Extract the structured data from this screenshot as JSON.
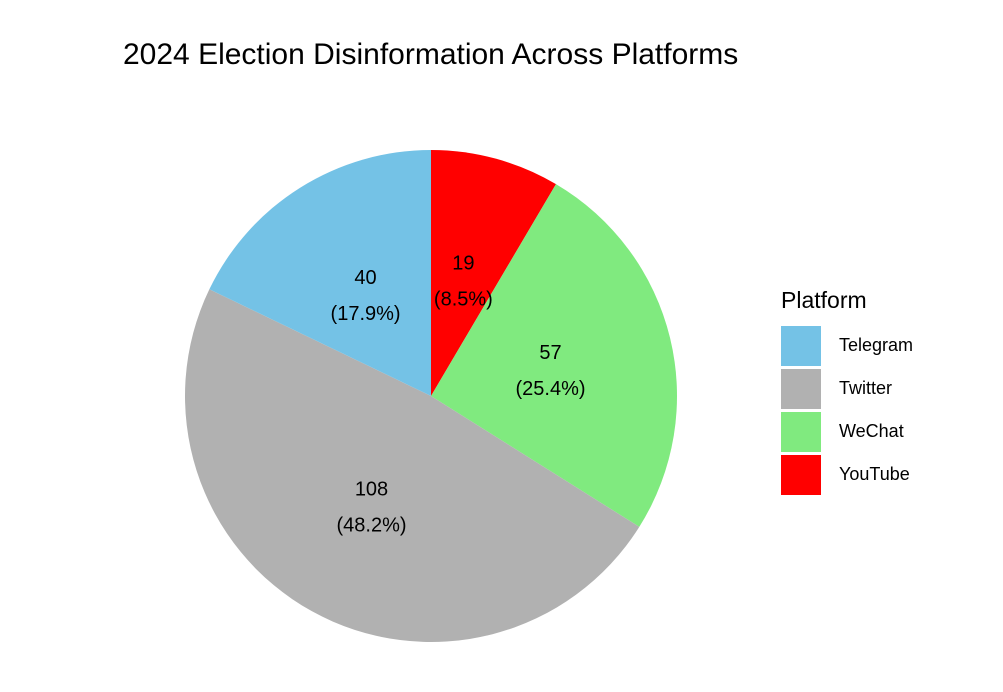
{
  "chart_data": {
    "type": "pie",
    "title": "2024 Election Disinformation Across Platforms",
    "legend_title": "Platform",
    "legend_position": "right",
    "slices": [
      {
        "category": "Telegram",
        "value": 40,
        "percent_label": "(17.9%)",
        "color": "#74c2e6"
      },
      {
        "category": "Twitter",
        "value": 108,
        "percent_label": "(48.2%)",
        "color": "#b1b1b1"
      },
      {
        "category": "WeChat",
        "value": 57,
        "percent_label": "(25.4%)",
        "color": "#80ea7f"
      },
      {
        "category": "YouTube",
        "value": 19,
        "percent_label": "(8.5%)",
        "color": "#ff0000"
      }
    ]
  }
}
